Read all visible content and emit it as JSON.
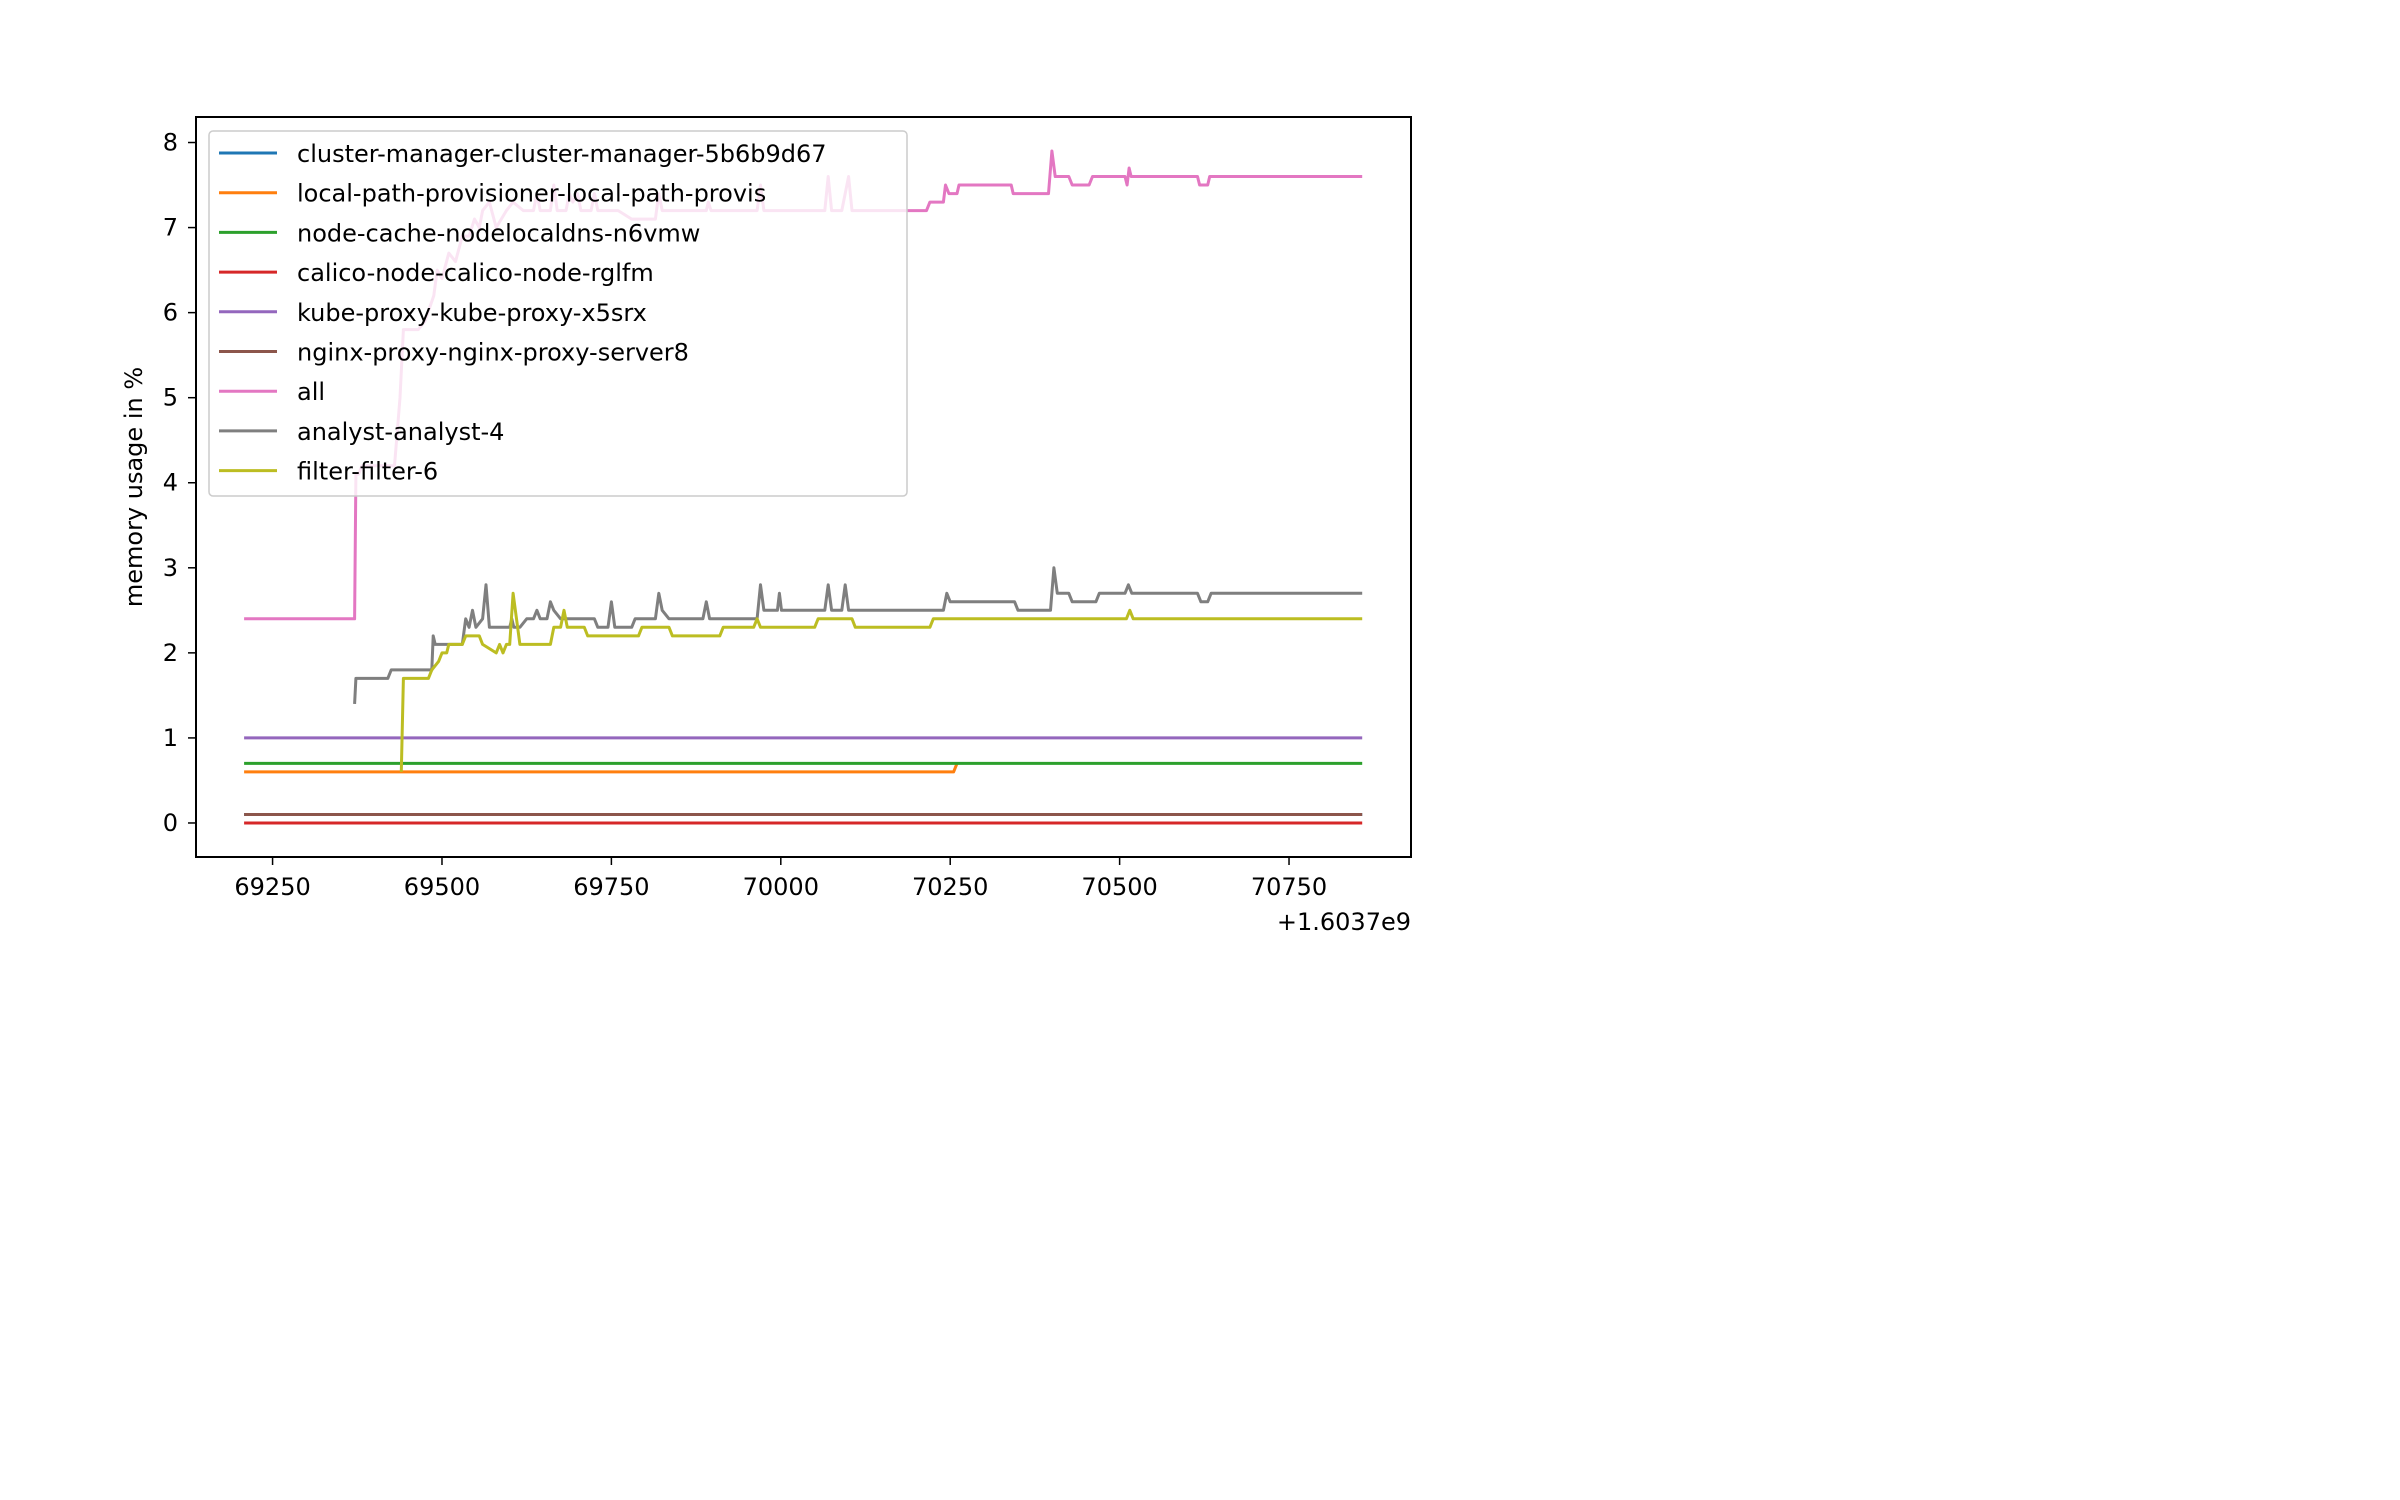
{
  "chart_data": {
    "type": "line",
    "title": "",
    "xlabel": "",
    "ylabel": "memory usage in %",
    "x_offset_label": "+1.6037e9",
    "xlim": [
      69137,
      70930
    ],
    "ylim": [
      -0.4,
      8.3
    ],
    "xticks": [
      69250,
      69500,
      69750,
      70000,
      70250,
      70500,
      70750
    ],
    "xtick_labels": [
      "69250",
      "69500",
      "69750",
      "70000",
      "70250",
      "70500",
      "70750"
    ],
    "yticks": [
      0,
      1,
      2,
      3,
      4,
      5,
      6,
      7,
      8
    ],
    "ytick_labels": [
      "0",
      "1",
      "2",
      "3",
      "4",
      "5",
      "6",
      "7",
      "8"
    ],
    "legend_position": "upper-left",
    "grid": false,
    "series": [
      {
        "name": "cluster-manager-cluster-manager-5b6b9d67",
        "color": "#1f77b4",
        "points": [
          [
            69208,
            0.1
          ],
          [
            70858,
            0.1
          ]
        ]
      },
      {
        "name": "local-path-provisioner-local-path-provis",
        "color": "#ff7f0e",
        "points": [
          [
            69208,
            0.6
          ],
          [
            70255,
            0.6
          ],
          [
            70260,
            0.7
          ]
        ]
      },
      {
        "name": "node-cache-nodelocaldns-n6vmw",
        "color": "#2ca02c",
        "points": [
          [
            69208,
            0.7
          ],
          [
            70858,
            0.7
          ]
        ]
      },
      {
        "name": "calico-node-calico-node-rglfm",
        "color": "#d62728",
        "points": [
          [
            69208,
            0.0
          ],
          [
            70858,
            0.0
          ]
        ]
      },
      {
        "name": "kube-proxy-kube-proxy-x5srx",
        "color": "#9467bd",
        "points": [
          [
            69208,
            1.0
          ],
          [
            70858,
            1.0
          ]
        ]
      },
      {
        "name": "nginx-proxy-nginx-proxy-server8",
        "color": "#8c564b",
        "points": [
          [
            69208,
            0.1
          ],
          [
            70858,
            0.1
          ]
        ]
      },
      {
        "name": "all",
        "color": "#e377c2",
        "points": [
          [
            69208,
            2.4
          ],
          [
            69371,
            2.4
          ],
          [
            69373,
            4.1
          ],
          [
            69377,
            4.1
          ],
          [
            69382,
            4.2
          ],
          [
            69430,
            4.2
          ],
          [
            69438,
            5.0
          ],
          [
            69443,
            5.8
          ],
          [
            69465,
            5.8
          ],
          [
            69475,
            5.9
          ],
          [
            69488,
            6.2
          ],
          [
            69493,
            6.5
          ],
          [
            69500,
            6.4
          ],
          [
            69510,
            6.7
          ],
          [
            69520,
            6.6
          ],
          [
            69530,
            6.9
          ],
          [
            69540,
            6.9
          ],
          [
            69548,
            7.1
          ],
          [
            69555,
            7.0
          ],
          [
            69560,
            7.2
          ],
          [
            69570,
            7.3
          ],
          [
            69580,
            7.0
          ],
          [
            69595,
            7.2
          ],
          [
            69605,
            7.3
          ],
          [
            69620,
            7.2
          ],
          [
            69635,
            7.2
          ],
          [
            69640,
            7.4
          ],
          [
            69645,
            7.2
          ],
          [
            69660,
            7.2
          ],
          [
            69665,
            7.5
          ],
          [
            69670,
            7.2
          ],
          [
            69683,
            7.2
          ],
          [
            69688,
            7.4
          ],
          [
            69693,
            7.3
          ],
          [
            69700,
            7.4
          ],
          [
            69705,
            7.2
          ],
          [
            69720,
            7.2
          ],
          [
            69725,
            7.4
          ],
          [
            69730,
            7.2
          ],
          [
            69760,
            7.2
          ],
          [
            69780,
            7.1
          ],
          [
            69815,
            7.1
          ],
          [
            69820,
            7.4
          ],
          [
            69825,
            7.2
          ],
          [
            69890,
            7.2
          ],
          [
            69893,
            7.3
          ],
          [
            69897,
            7.2
          ],
          [
            69965,
            7.2
          ],
          [
            69970,
            7.5
          ],
          [
            69975,
            7.2
          ],
          [
            70065,
            7.2
          ],
          [
            70070,
            7.6
          ],
          [
            70075,
            7.2
          ],
          [
            70090,
            7.2
          ],
          [
            70095,
            7.4
          ],
          [
            70100,
            7.6
          ],
          [
            70105,
            7.2
          ],
          [
            70180,
            7.2
          ],
          [
            70215,
            7.2
          ],
          [
            70220,
            7.3
          ],
          [
            70240,
            7.3
          ],
          [
            70243,
            7.5
          ],
          [
            70248,
            7.4
          ],
          [
            70260,
            7.4
          ],
          [
            70263,
            7.5
          ],
          [
            70340,
            7.5
          ],
          [
            70343,
            7.4
          ],
          [
            70395,
            7.4
          ],
          [
            70400,
            7.9
          ],
          [
            70405,
            7.6
          ],
          [
            70425,
            7.6
          ],
          [
            70430,
            7.5
          ],
          [
            70455,
            7.5
          ],
          [
            70460,
            7.6
          ],
          [
            70508,
            7.6
          ],
          [
            70511,
            7.5
          ],
          [
            70514,
            7.7
          ],
          [
            70517,
            7.6
          ],
          [
            70615,
            7.6
          ],
          [
            70618,
            7.5
          ],
          [
            70630,
            7.5
          ],
          [
            70633,
            7.6
          ],
          [
            70858,
            7.6
          ]
        ]
      },
      {
        "name": "analyst-analyst-4",
        "color": "#7f7f7f",
        "points": [
          [
            69371,
            1.4
          ],
          [
            69373,
            1.7
          ],
          [
            69420,
            1.7
          ],
          [
            69425,
            1.8
          ],
          [
            69485,
            1.8
          ],
          [
            69487,
            2.2
          ],
          [
            69490,
            2.1
          ],
          [
            69530,
            2.1
          ],
          [
            69535,
            2.4
          ],
          [
            69540,
            2.3
          ],
          [
            69545,
            2.5
          ],
          [
            69550,
            2.3
          ],
          [
            69560,
            2.4
          ],
          [
            69565,
            2.8
          ],
          [
            69570,
            2.3
          ],
          [
            69585,
            2.3
          ],
          [
            69600,
            2.3
          ],
          [
            69603,
            2.4
          ],
          [
            69606,
            2.3
          ],
          [
            69615,
            2.3
          ],
          [
            69625,
            2.4
          ],
          [
            69635,
            2.4
          ],
          [
            69640,
            2.5
          ],
          [
            69645,
            2.4
          ],
          [
            69655,
            2.4
          ],
          [
            69660,
            2.6
          ],
          [
            69665,
            2.5
          ],
          [
            69675,
            2.4
          ],
          [
            69725,
            2.4
          ],
          [
            69730,
            2.3
          ],
          [
            69745,
            2.3
          ],
          [
            69750,
            2.6
          ],
          [
            69755,
            2.3
          ],
          [
            69780,
            2.3
          ],
          [
            69785,
            2.4
          ],
          [
            69815,
            2.4
          ],
          [
            69820,
            2.7
          ],
          [
            69825,
            2.5
          ],
          [
            69835,
            2.4
          ],
          [
            69885,
            2.4
          ],
          [
            69890,
            2.6
          ],
          [
            69895,
            2.4
          ],
          [
            69965,
            2.4
          ],
          [
            69970,
            2.8
          ],
          [
            69975,
            2.5
          ],
          [
            69995,
            2.5
          ],
          [
            69998,
            2.7
          ],
          [
            70001,
            2.5
          ],
          [
            70065,
            2.5
          ],
          [
            70070,
            2.8
          ],
          [
            70075,
            2.5
          ],
          [
            70090,
            2.5
          ],
          [
            70095,
            2.8
          ],
          [
            70100,
            2.5
          ],
          [
            70240,
            2.5
          ],
          [
            70245,
            2.7
          ],
          [
            70250,
            2.6
          ],
          [
            70345,
            2.6
          ],
          [
            70350,
            2.5
          ],
          [
            70398,
            2.5
          ],
          [
            70403,
            3.0
          ],
          [
            70408,
            2.7
          ],
          [
            70425,
            2.7
          ],
          [
            70430,
            2.6
          ],
          [
            70465,
            2.6
          ],
          [
            70470,
            2.7
          ],
          [
            70508,
            2.7
          ],
          [
            70513,
            2.8
          ],
          [
            70518,
            2.7
          ],
          [
            70615,
            2.7
          ],
          [
            70620,
            2.6
          ],
          [
            70630,
            2.6
          ],
          [
            70635,
            2.7
          ],
          [
            70858,
            2.7
          ]
        ]
      },
      {
        "name": "filter-filter-6",
        "color": "#bcbd22",
        "points": [
          [
            69440,
            0.6
          ],
          [
            69443,
            1.7
          ],
          [
            69480,
            1.7
          ],
          [
            69485,
            1.8
          ],
          [
            69495,
            1.9
          ],
          [
            69500,
            2.0
          ],
          [
            69507,
            2.0
          ],
          [
            69510,
            2.1
          ],
          [
            69530,
            2.1
          ],
          [
            69535,
            2.2
          ],
          [
            69555,
            2.2
          ],
          [
            69560,
            2.1
          ],
          [
            69580,
            2.0
          ],
          [
            69585,
            2.1
          ],
          [
            69590,
            2.0
          ],
          [
            69595,
            2.1
          ],
          [
            69600,
            2.1
          ],
          [
            69605,
            2.7
          ],
          [
            69610,
            2.4
          ],
          [
            69615,
            2.1
          ],
          [
            69660,
            2.1
          ],
          [
            69665,
            2.3
          ],
          [
            69675,
            2.3
          ],
          [
            69680,
            2.5
          ],
          [
            69685,
            2.3
          ],
          [
            69710,
            2.3
          ],
          [
            69715,
            2.2
          ],
          [
            69790,
            2.2
          ],
          [
            69795,
            2.3
          ],
          [
            69835,
            2.3
          ],
          [
            69840,
            2.2
          ],
          [
            69910,
            2.2
          ],
          [
            69915,
            2.3
          ],
          [
            69960,
            2.3
          ],
          [
            69965,
            2.4
          ],
          [
            69970,
            2.3
          ],
          [
            70050,
            2.3
          ],
          [
            70055,
            2.4
          ],
          [
            70105,
            2.4
          ],
          [
            70110,
            2.3
          ],
          [
            70220,
            2.3
          ],
          [
            70225,
            2.4
          ],
          [
            70510,
            2.4
          ],
          [
            70515,
            2.5
          ],
          [
            70520,
            2.4
          ],
          [
            70858,
            2.4
          ]
        ]
      }
    ]
  }
}
